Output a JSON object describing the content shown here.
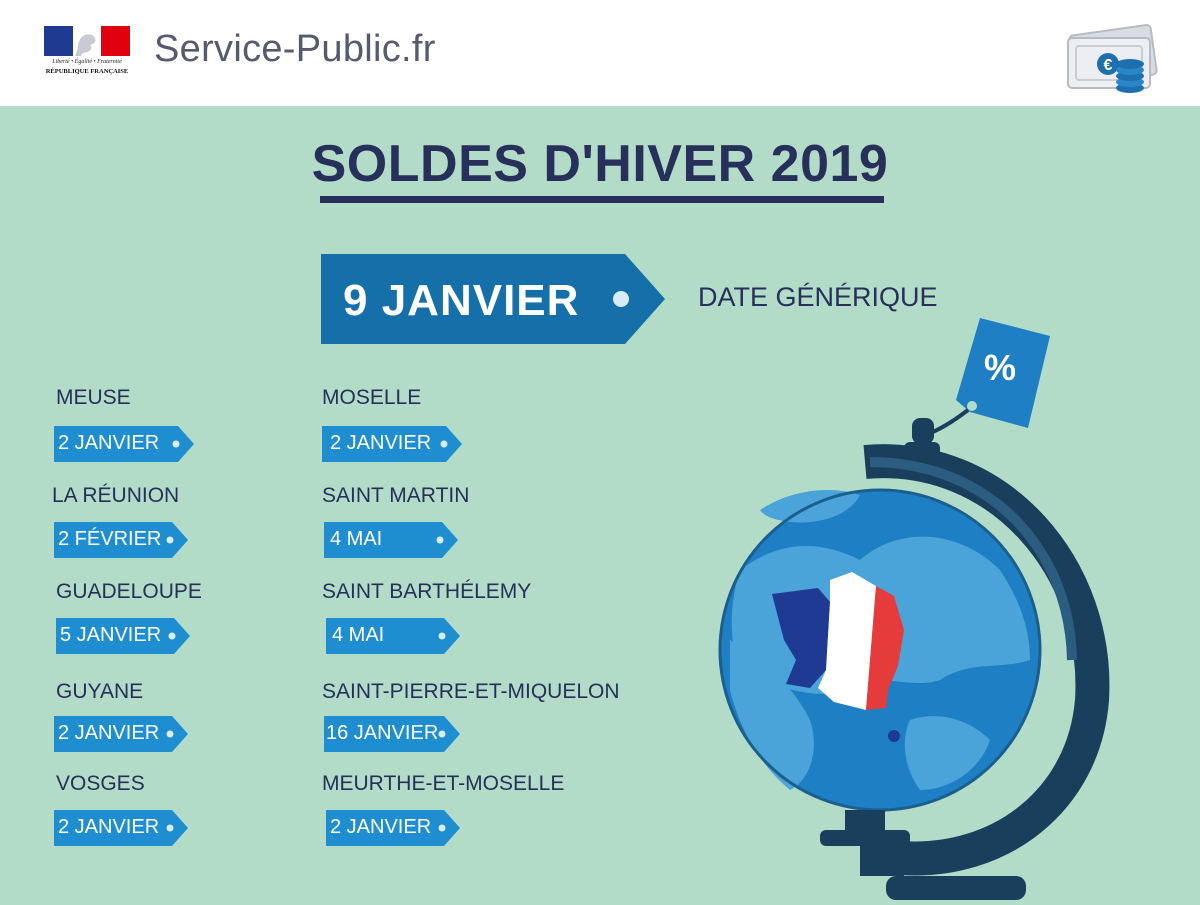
{
  "header": {
    "motto": "Liberté • Égalité • Fraternité",
    "republic": "RÉPUBLIQUE FRANÇAISE",
    "site_title": "Service-Public.fr",
    "money_icon": "banknote-coins-icon"
  },
  "title": "SOLDES D'HIVER 2019",
  "main": {
    "date": "9 JANVIER",
    "label": "DATE GÉNÉRIQUE"
  },
  "regions": [
    {
      "name": "MEUSE",
      "date": "2 JANVIER"
    },
    {
      "name": "LA RÉUNION",
      "date": "2 FÉVRIER"
    },
    {
      "name": "GUADELOUPE",
      "date": "5 JANVIER"
    },
    {
      "name": "GUYANE",
      "date": "2 JANVIER"
    },
    {
      "name": "VOSGES",
      "date": "2 JANVIER"
    },
    {
      "name": "MOSELLE",
      "date": "2 JANVIER"
    },
    {
      "name": "SAINT MARTIN",
      "date": "4 MAI"
    },
    {
      "name": "SAINT BARTHÉLEMY",
      "date": "4 MAI"
    },
    {
      "name": "SAINT-PIERRE-ET-MIQUELON",
      "date": "16 JANVIER"
    },
    {
      "name": "MEURTHE-ET-MOSELLE",
      "date": "2 JANVIER"
    }
  ],
  "illustration": {
    "globe_icon": "globe-icon",
    "percent_tag": "%"
  },
  "colors": {
    "background": "#b2dcc7",
    "navy": "#27305a",
    "tag_blue": "#1f8ed0",
    "main_tag_blue": "#156fa8",
    "flag_blue": "#1f3a93",
    "flag_red": "#e63b3b"
  }
}
